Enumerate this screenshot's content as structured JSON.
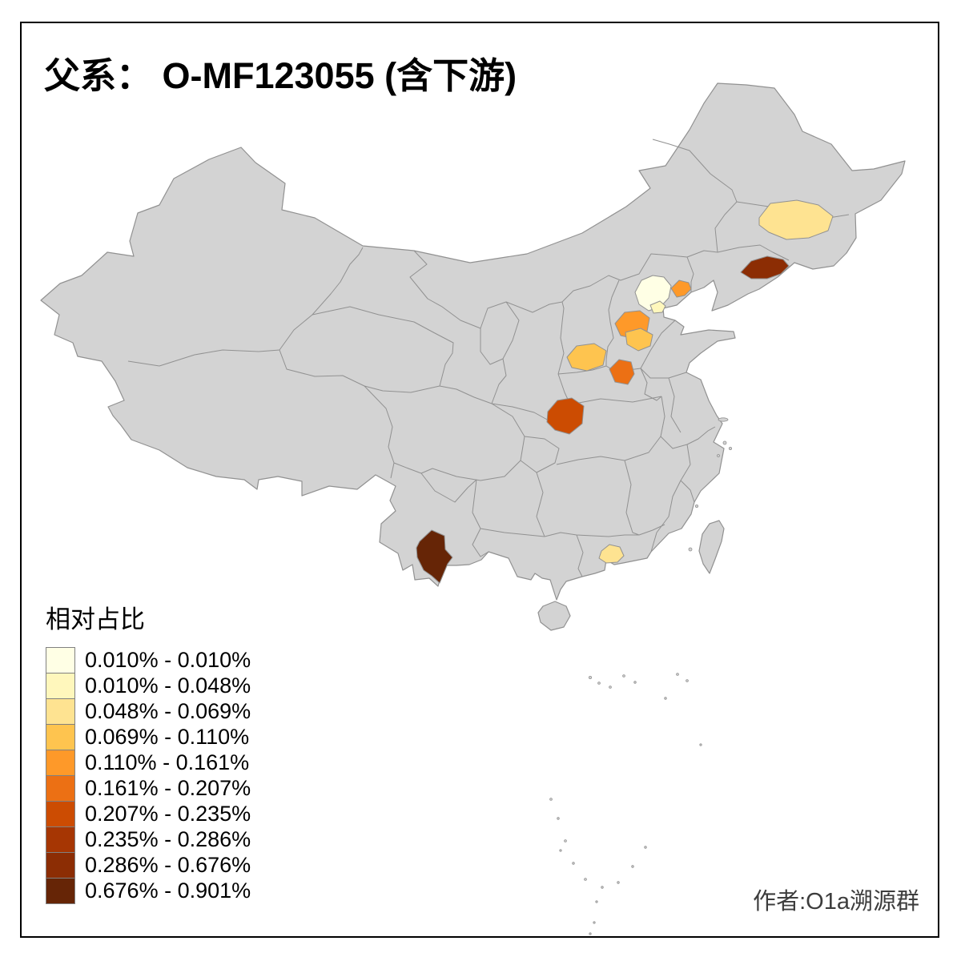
{
  "title": "父系： O-MF123055 (含下游)",
  "attribution": "作者:O1a溯源群",
  "legend": {
    "title": "相对占比",
    "bins": [
      {
        "label": "0.010% - 0.010%",
        "color": "#FFFFE5"
      },
      {
        "label": "0.010% - 0.048%",
        "color": "#FFF7BC"
      },
      {
        "label": "0.048% - 0.069%",
        "color": "#FEE391"
      },
      {
        "label": "0.069% - 0.110%",
        "color": "#FEC44F"
      },
      {
        "label": "0.110% - 0.161%",
        "color": "#FE9929"
      },
      {
        "label": "0.161% - 0.207%",
        "color": "#EC7014"
      },
      {
        "label": "0.207% - 0.235%",
        "color": "#CC4C02"
      },
      {
        "label": "0.235% - 0.286%",
        "color": "#A63603"
      },
      {
        "label": "0.286% - 0.676%",
        "color": "#8C2D04"
      },
      {
        "label": "0.676% - 0.901%",
        "color": "#662506"
      }
    ]
  },
  "map": {
    "land_fill": "#D3D3D3",
    "boundary_color": "#919191",
    "sea_fill": "#FFFFFF"
  },
  "chart_data": {
    "type": "heatmap",
    "subtype": "choropleth-map",
    "geography": "China, prefecture-level shading on province base map",
    "title": "父系： O-MF123055 (含下游)",
    "legend_title": "相对占比",
    "unit": "%",
    "bins": [
      "0.010% - 0.010%",
      "0.010% - 0.048%",
      "0.048% - 0.069%",
      "0.069% - 0.110%",
      "0.110% - 0.161%",
      "0.161% - 0.207%",
      "0.207% - 0.235%",
      "0.235% - 0.286%",
      "0.286% - 0.676%",
      "0.676% - 0.901%"
    ],
    "colors": [
      "#FFFFE5",
      "#FFF7BC",
      "#FEE391",
      "#FEC44F",
      "#FE9929",
      "#EC7014",
      "#CC4C02",
      "#A63603",
      "#8C2D04",
      "#662506"
    ],
    "base_color_no_data": "#D3D3D3",
    "highlighted_regions": [
      {
        "id": "beijing",
        "approx_location": "Beijing area",
        "bin": "0.010% - 0.010%",
        "color": "#FFFFE5"
      },
      {
        "id": "beijing-southeast",
        "approx_location": "SE of Beijing",
        "bin": "0.010% - 0.048%",
        "color": "#FFF7BC"
      },
      {
        "id": "jilin-city-area",
        "approx_location": "central Jilin (northeast)",
        "bin": "0.048% - 0.069%",
        "color": "#FEE391"
      },
      {
        "id": "guangzhou-area",
        "approx_location": "central Guangdong (south)",
        "bin": "0.048% - 0.069%",
        "color": "#FEE391"
      },
      {
        "id": "shanxi-central",
        "approx_location": "central Shanxi",
        "bin": "0.069% - 0.110%",
        "color": "#FEC44F"
      },
      {
        "id": "hebei-southeast",
        "approx_location": "south-central Hebei",
        "bin": "0.069% - 0.110%",
        "color": "#FEC44F"
      },
      {
        "id": "hebei-central",
        "approx_location": "central Hebei",
        "bin": "0.110% - 0.161%",
        "color": "#FE9929"
      },
      {
        "id": "tangshan-area",
        "approx_location": "east of Beijing (Tangshan)",
        "bin": "0.110% - 0.161%",
        "color": "#FE9929"
      },
      {
        "id": "handan-area",
        "approx_location": "southern Hebei border",
        "bin": "0.161% - 0.207%",
        "color": "#EC7014"
      },
      {
        "id": "shaanxi-central",
        "approx_location": "central Shaanxi",
        "bin": "0.207% - 0.235%",
        "color": "#CC4C02"
      },
      {
        "id": "liaoning-east",
        "approx_location": "eastern Liaoning",
        "bin": "0.286% - 0.676%",
        "color": "#8C2D04"
      },
      {
        "id": "yunnan-west",
        "approx_location": "western Yunnan",
        "bin": "0.676% - 0.901%",
        "color": "#662506"
      }
    ]
  }
}
